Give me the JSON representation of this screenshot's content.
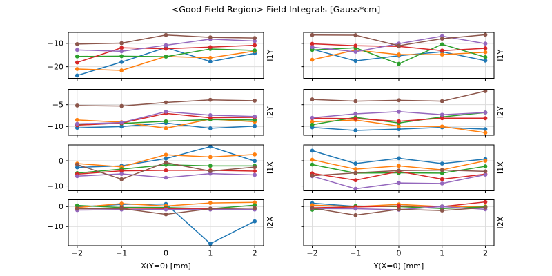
{
  "figure": {
    "title": "<Good Field Region> Field Integrals [Gauss*cm]"
  },
  "chart_data": {
    "type": "line",
    "marker": "circle",
    "grid": true,
    "legend": "none",
    "x": [
      -2,
      -1,
      0,
      1,
      2
    ],
    "xlim": [
      -2.2,
      2.2
    ],
    "xticks": [
      -2,
      -1,
      0,
      1,
      2
    ],
    "colors": {
      "blue": "#1f77b4",
      "orange": "#ff7f0e",
      "green": "#2ca02c",
      "red": "#d62728",
      "purple": "#9467bd",
      "brown": "#8c564b"
    },
    "columns": [
      {
        "xlabel": "X(Y=0) [mm]",
        "xticklabels": [
          "−2",
          "−1",
          "0",
          "1",
          "2"
        ]
      },
      {
        "xlabel": "Y(X=0) [mm]",
        "xticklabels": [
          "−2",
          "−1",
          "0",
          "1",
          "2"
        ]
      }
    ],
    "rows": [
      {
        "label": "I1Y",
        "ylim": [
          -25.0,
          -5.3
        ],
        "yticks": [
          -20,
          -10
        ],
        "yticklabels": [
          "−20",
          "−10"
        ]
      },
      {
        "label": "I2Y",
        "ylim": [
          -12.0,
          -1.5
        ],
        "yticks": [
          -10,
          -5
        ],
        "yticklabels": [
          "−10",
          "−5"
        ]
      },
      {
        "label": "I1X",
        "ylim": [
          -11.9,
          6.3
        ],
        "yticks": [
          -10,
          0
        ],
        "yticklabels": [
          "−10",
          "0"
        ]
      },
      {
        "label": "I2X",
        "ylim": [
          -19.6,
          3.4
        ],
        "yticks": [
          -10,
          0
        ],
        "yticklabels": [
          "−10",
          "0"
        ]
      }
    ],
    "subplots": [
      {
        "row": "I1Y",
        "col": "X(Y=0) [mm]",
        "series": [
          {
            "name": "blue",
            "values": [
              -23.8,
              -18.0,
              -11.8,
              -17.8,
              -14.3
            ]
          },
          {
            "name": "orange",
            "values": [
              -21.0,
              -21.6,
              -15.6,
              -16.2,
              -13.3
            ]
          },
          {
            "name": "green",
            "values": [
              -15.6,
              -15.5,
              -15.7,
              -12.4,
              -13.0
            ]
          },
          {
            "name": "red",
            "values": [
              -18.2,
              -11.9,
              -12.3,
              -11.6,
              -10.8
            ]
          },
          {
            "name": "purple",
            "values": [
              -12.8,
              -13.4,
              -10.8,
              -8.2,
              -9.0
            ]
          },
          {
            "name": "brown",
            "values": [
              -10.3,
              -9.9,
              -6.4,
              -7.4,
              -7.7
            ]
          }
        ]
      },
      {
        "row": "I1Y",
        "col": "Y(X=0) [mm]",
        "series": [
          {
            "name": "blue",
            "values": [
              -12.5,
              -17.5,
              -15.3,
              -13.6,
              -17.4
            ]
          },
          {
            "name": "orange",
            "values": [
              -17.0,
              -12.9,
              -14.8,
              -14.8,
              -13.8
            ]
          },
          {
            "name": "green",
            "values": [
              -12.8,
              -11.9,
              -18.8,
              -10.4,
              -15.9
            ]
          },
          {
            "name": "red",
            "values": [
              -10.2,
              -11.0,
              -11.3,
              -13.1,
              -12.1
            ]
          },
          {
            "name": "purple",
            "values": [
              -11.6,
              -13.6,
              -10.1,
              -6.9,
              -10.1
            ]
          },
          {
            "name": "brown",
            "values": [
              -6.4,
              -6.5,
              -11.0,
              -8.0,
              -6.3
            ]
          }
        ]
      },
      {
        "row": "I2Y",
        "col": "X(Y=0) [mm]",
        "series": [
          {
            "name": "blue",
            "values": [
              -10.3,
              -10.0,
              -9.2,
              -10.4,
              -9.9
            ]
          },
          {
            "name": "orange",
            "values": [
              -8.5,
              -9.0,
              -10.4,
              -8.3,
              -8.9
            ]
          },
          {
            "name": "green",
            "values": [
              -9.5,
              -9.3,
              -8.8,
              -8.4,
              -8.5
            ]
          },
          {
            "name": "red",
            "values": [
              -9.7,
              -9.2,
              -7.0,
              -8.0,
              -7.9
            ]
          },
          {
            "name": "purple",
            "values": [
              -9.4,
              -9.1,
              -6.6,
              -7.4,
              -7.7
            ]
          },
          {
            "name": "brown",
            "values": [
              -5.2,
              -5.3,
              -4.5,
              -3.9,
              -4.1
            ]
          }
        ]
      },
      {
        "row": "I2Y",
        "col": "Y(X=0) [mm]",
        "series": [
          {
            "name": "blue",
            "values": [
              -10.2,
              -10.9,
              -10.6,
              -10.2,
              -10.6
            ]
          },
          {
            "name": "orange",
            "values": [
              -8.9,
              -8.5,
              -9.9,
              -10.0,
              -11.4
            ]
          },
          {
            "name": "green",
            "values": [
              -9.6,
              -7.9,
              -9.2,
              -7.8,
              -6.8
            ]
          },
          {
            "name": "red",
            "values": [
              -8.1,
              -8.2,
              -8.8,
              -8.1,
              -8.1
            ]
          },
          {
            "name": "purple",
            "values": [
              -8.0,
              -7.1,
              -6.6,
              -7.3,
              -6.8
            ]
          },
          {
            "name": "brown",
            "values": [
              -3.8,
              -4.2,
              -4.0,
              -4.2,
              -1.9
            ]
          }
        ]
      },
      {
        "row": "I1X",
        "col": "X(Y=0) [mm]",
        "series": [
          {
            "name": "blue",
            "values": [
              -2.6,
              -2.0,
              0.9,
              5.6,
              -0.1
            ]
          },
          {
            "name": "orange",
            "values": [
              -1.1,
              -2.4,
              2.4,
              1.5,
              2.5
            ]
          },
          {
            "name": "green",
            "values": [
              -4.9,
              -3.3,
              -1.6,
              -2.0,
              -2.0
            ]
          },
          {
            "name": "red",
            "values": [
              -5.3,
              -4.0,
              -3.8,
              -3.8,
              -4.1
            ]
          },
          {
            "name": "purple",
            "values": [
              -6.1,
              -5.2,
              -6.7,
              -5.1,
              -5.6
            ]
          },
          {
            "name": "brown",
            "values": [
              -1.5,
              -7.3,
              -0.7,
              -4.1,
              -2.5
            ]
          }
        ]
      },
      {
        "row": "I1X",
        "col": "Y(X=0) [mm]",
        "series": [
          {
            "name": "blue",
            "values": [
              4.0,
              -1.1,
              1.0,
              -1.1,
              0.7
            ]
          },
          {
            "name": "orange",
            "values": [
              0.4,
              -3.3,
              -2.0,
              -3.6,
              0.0
            ]
          },
          {
            "name": "green",
            "values": [
              -1.5,
              -4.9,
              -4.8,
              -4.9,
              -2.2
            ]
          },
          {
            "name": "red",
            "values": [
              -5.0,
              -7.7,
              -4.2,
              -7.3,
              -5.3
            ]
          },
          {
            "name": "purple",
            "values": [
              -6.1,
              -11.1,
              -8.8,
              -9.0,
              -5.5
            ]
          },
          {
            "name": "brown",
            "values": [
              -5.9,
              -4.8,
              -3.9,
              -3.7,
              -4.2
            ]
          }
        ]
      },
      {
        "row": "I2X",
        "col": "X(Y=0) [mm]",
        "series": [
          {
            "name": "blue",
            "values": [
              -0.2,
              1.1,
              1.3,
              -18.6,
              -7.4
            ]
          },
          {
            "name": "orange",
            "values": [
              -0.5,
              1.5,
              0.3,
              1.8,
              2.1
            ]
          },
          {
            "name": "green",
            "values": [
              0.6,
              -0.5,
              -0.5,
              -1.1,
              0.7
            ]
          },
          {
            "name": "red",
            "values": [
              -1.0,
              -0.8,
              -1.0,
              -1.0,
              -0.8
            ]
          },
          {
            "name": "purple",
            "values": [
              -1.8,
              -1.5,
              -1.5,
              -1.5,
              -1.5
            ]
          },
          {
            "name": "brown",
            "values": [
              -1.1,
              -1.0,
              -3.9,
              -1.1,
              -0.8
            ]
          }
        ]
      },
      {
        "row": "I2X",
        "col": "Y(X=0) [mm]",
        "series": [
          {
            "name": "blue",
            "values": [
              1.7,
              0.1,
              0.3,
              0.1,
              0.1
            ]
          },
          {
            "name": "orange",
            "values": [
              0.7,
              0.0,
              1.1,
              0.0,
              0.1
            ]
          },
          {
            "name": "green",
            "values": [
              -1.6,
              0.3,
              0.0,
              -1.0,
              -0.2
            ]
          },
          {
            "name": "red",
            "values": [
              -0.6,
              -0.2,
              0.3,
              0.0,
              2.3
            ]
          },
          {
            "name": "purple",
            "values": [
              -1.0,
              -1.1,
              -1.6,
              0.0,
              -1.4
            ]
          },
          {
            "name": "brown",
            "values": [
              -0.8,
              -4.3,
              -1.4,
              -2.0,
              -0.5
            ]
          }
        ]
      }
    ]
  }
}
